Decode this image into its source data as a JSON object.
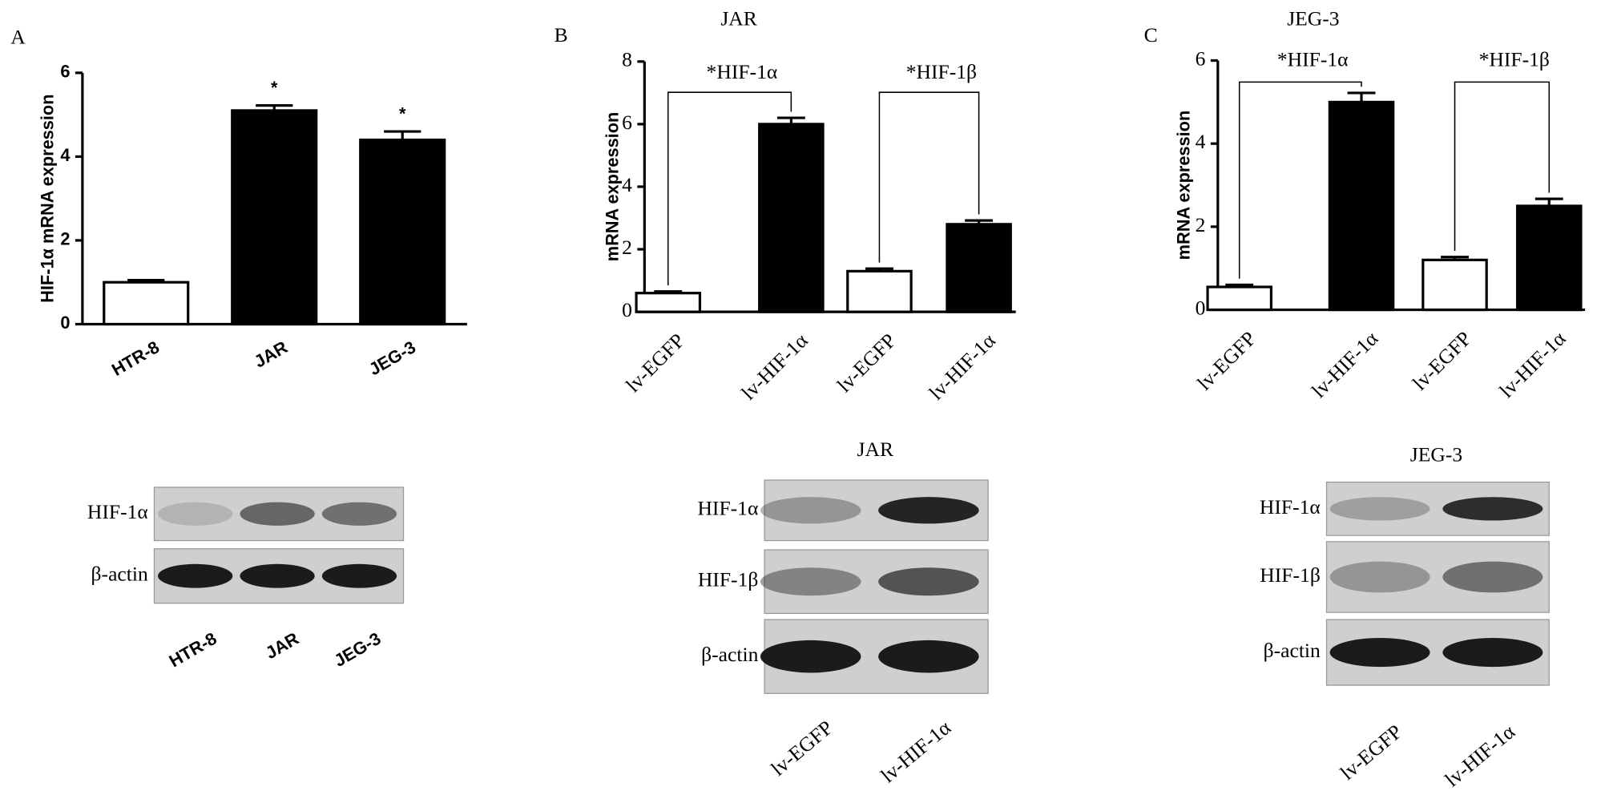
{
  "panels": [
    "A",
    "B",
    "C"
  ],
  "chart_data": [
    {
      "type": "bar",
      "ylabel": "HIF-1α  mRNA expression",
      "categories": [
        "HTR-8",
        "JAR",
        "JEG-3"
      ],
      "values": [
        1.0,
        5.1,
        4.4
      ],
      "errors": [
        0.05,
        0.12,
        0.2
      ],
      "colors": [
        "#ffffff",
        "#000000",
        "#000000"
      ],
      "ylim": [
        0,
        6
      ],
      "yticks": [
        0,
        2,
        4,
        6
      ],
      "annotations": [
        "*",
        "*"
      ]
    },
    {
      "type": "bar",
      "title": "JAR",
      "ylabel": "mRNA expression",
      "categories": [
        "lv-EGFP",
        "lv-HIF-1α",
        "lv-EGFP",
        "lv-HIF-1α"
      ],
      "values": [
        0.6,
        6.0,
        1.3,
        2.8
      ],
      "errors": [
        0.05,
        0.2,
        0.08,
        0.12
      ],
      "colors": [
        "#ffffff",
        "#000000",
        "#ffffff",
        "#000000"
      ],
      "ylim": [
        0,
        8
      ],
      "yticks": [
        0,
        2,
        4,
        6,
        8
      ],
      "brackets": [
        "*HIF-1α",
        "*HIF-1β"
      ]
    },
    {
      "type": "bar",
      "title": "JEG-3",
      "ylabel": "mRNA expression",
      "categories": [
        "lv-EGFP",
        "lv-HIF-1α",
        "lv-EGFP",
        "lv-HIF-1α"
      ],
      "values": [
        0.55,
        5.0,
        1.2,
        2.5
      ],
      "errors": [
        0.05,
        0.22,
        0.07,
        0.17
      ],
      "colors": [
        "#ffffff",
        "#000000",
        "#ffffff",
        "#000000"
      ],
      "ylim": [
        0,
        6
      ],
      "yticks": [
        0,
        2,
        4,
        6
      ],
      "brackets": [
        "*HIF-1α",
        "*HIF-1β"
      ]
    }
  ],
  "blots": [
    {
      "rows": [
        "HIF-1α",
        "β-actin"
      ],
      "lanes": [
        "HTR-8",
        "JAR",
        "JEG-3"
      ]
    },
    {
      "title": "JAR",
      "rows": [
        "HIF-1α",
        "HIF-1β",
        "β-actin"
      ],
      "lanes": [
        "lv-EGFP",
        "lv-HIF-1α"
      ]
    },
    {
      "title": "JEG-3",
      "rows": [
        "HIF-1α",
        "HIF-1β",
        "β-actin"
      ],
      "lanes": [
        "lv-EGFP",
        "lv-HIF-1α"
      ]
    }
  ]
}
